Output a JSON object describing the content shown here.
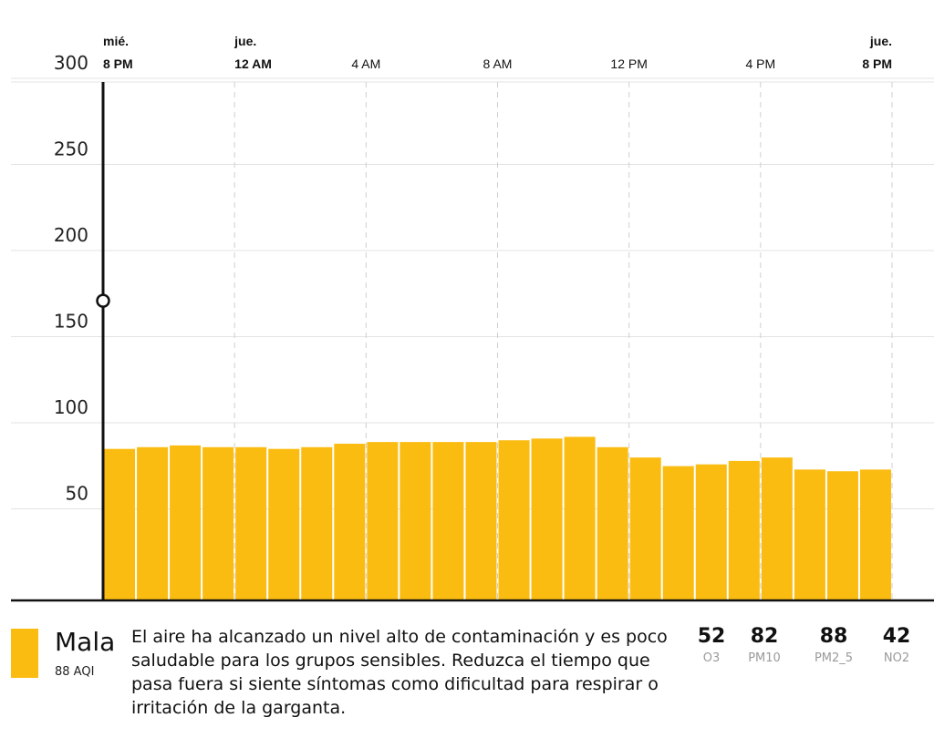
{
  "chart_data": {
    "type": "bar",
    "x_ticks": [
      {
        "day": "mié.",
        "time": "8 PM",
        "hour": 0
      },
      {
        "day": "jue.",
        "time": "12 AM",
        "hour": 4
      },
      {
        "day": "",
        "time": "4 AM",
        "hour": 8
      },
      {
        "day": "",
        "time": "8 AM",
        "hour": 12
      },
      {
        "day": "",
        "time": "12 PM",
        "hour": 16
      },
      {
        "day": "",
        "time": "4 PM",
        "hour": 20
      },
      {
        "day": "jue.",
        "time": "8 PM",
        "hour": 24
      }
    ],
    "y_ticks": [
      50,
      100,
      150,
      200,
      250,
      300
    ],
    "ylim": [
      0,
      320
    ],
    "values": [
      88,
      89,
      90,
      89,
      89,
      88,
      89,
      91,
      92,
      92,
      92,
      92,
      93,
      94,
      95,
      89,
      83,
      78,
      79,
      81,
      83,
      76,
      75,
      76
    ],
    "bar_color": "#FBBC12",
    "cursor_value": 174,
    "grid": true
  },
  "summary": {
    "category": "Mala",
    "aqi_label": "88 AQI",
    "color": "#FBBC12",
    "description": "El aire ha alcanzado un nivel alto de contaminación y es poco saludable para los grupos sensibles. Reduzca el tiempo que pasa fuera si siente síntomas como dificultad para respirar o irritación de la garganta."
  },
  "pollutants": [
    {
      "value": "52",
      "name": "O3"
    },
    {
      "value": "82",
      "name": "PM10"
    },
    {
      "value": "88",
      "name": "PM2_5"
    },
    {
      "value": "42",
      "name": "NO2"
    }
  ]
}
